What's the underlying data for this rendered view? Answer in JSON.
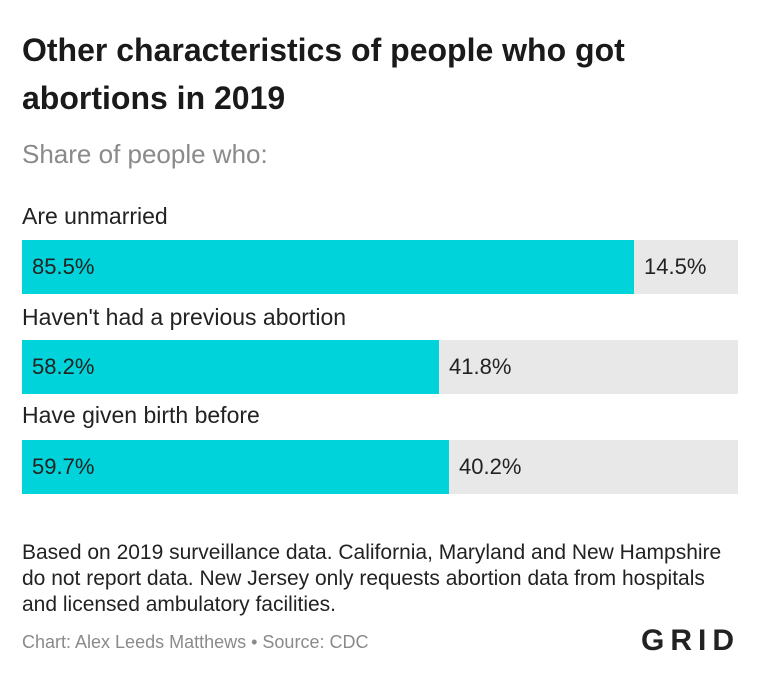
{
  "title": "Other characteristics of people who got abortions in 2019",
  "subtitle": "Share of people who:",
  "chart_data": {
    "type": "bar",
    "orientation": "horizontal",
    "stacked": true,
    "categories": [
      "Are unmarried",
      "Haven't had a previous abortion",
      "Have given birth before"
    ],
    "series": [
      {
        "values": [
          85.5,
          58.2,
          59.7
        ],
        "labels": [
          "85.5%",
          "58.2%",
          "59.7%"
        ],
        "color": "#00d3d9"
      },
      {
        "values": [
          14.5,
          41.8,
          40.2
        ],
        "labels": [
          "14.5%",
          "41.8%",
          "40.2%"
        ],
        "color": "#e8e8e8"
      }
    ],
    "xlim": [
      0,
      100
    ],
    "grid": false
  },
  "note": "Based on 2019 surveillance data. California, Maryland and New Hampshire do not report data. New Jersey only requests abortion data from hospitals and licensed ambulatory facilities.",
  "credit": "Chart: Alex Leeds Matthews • Source: CDC",
  "logo": "GRID"
}
